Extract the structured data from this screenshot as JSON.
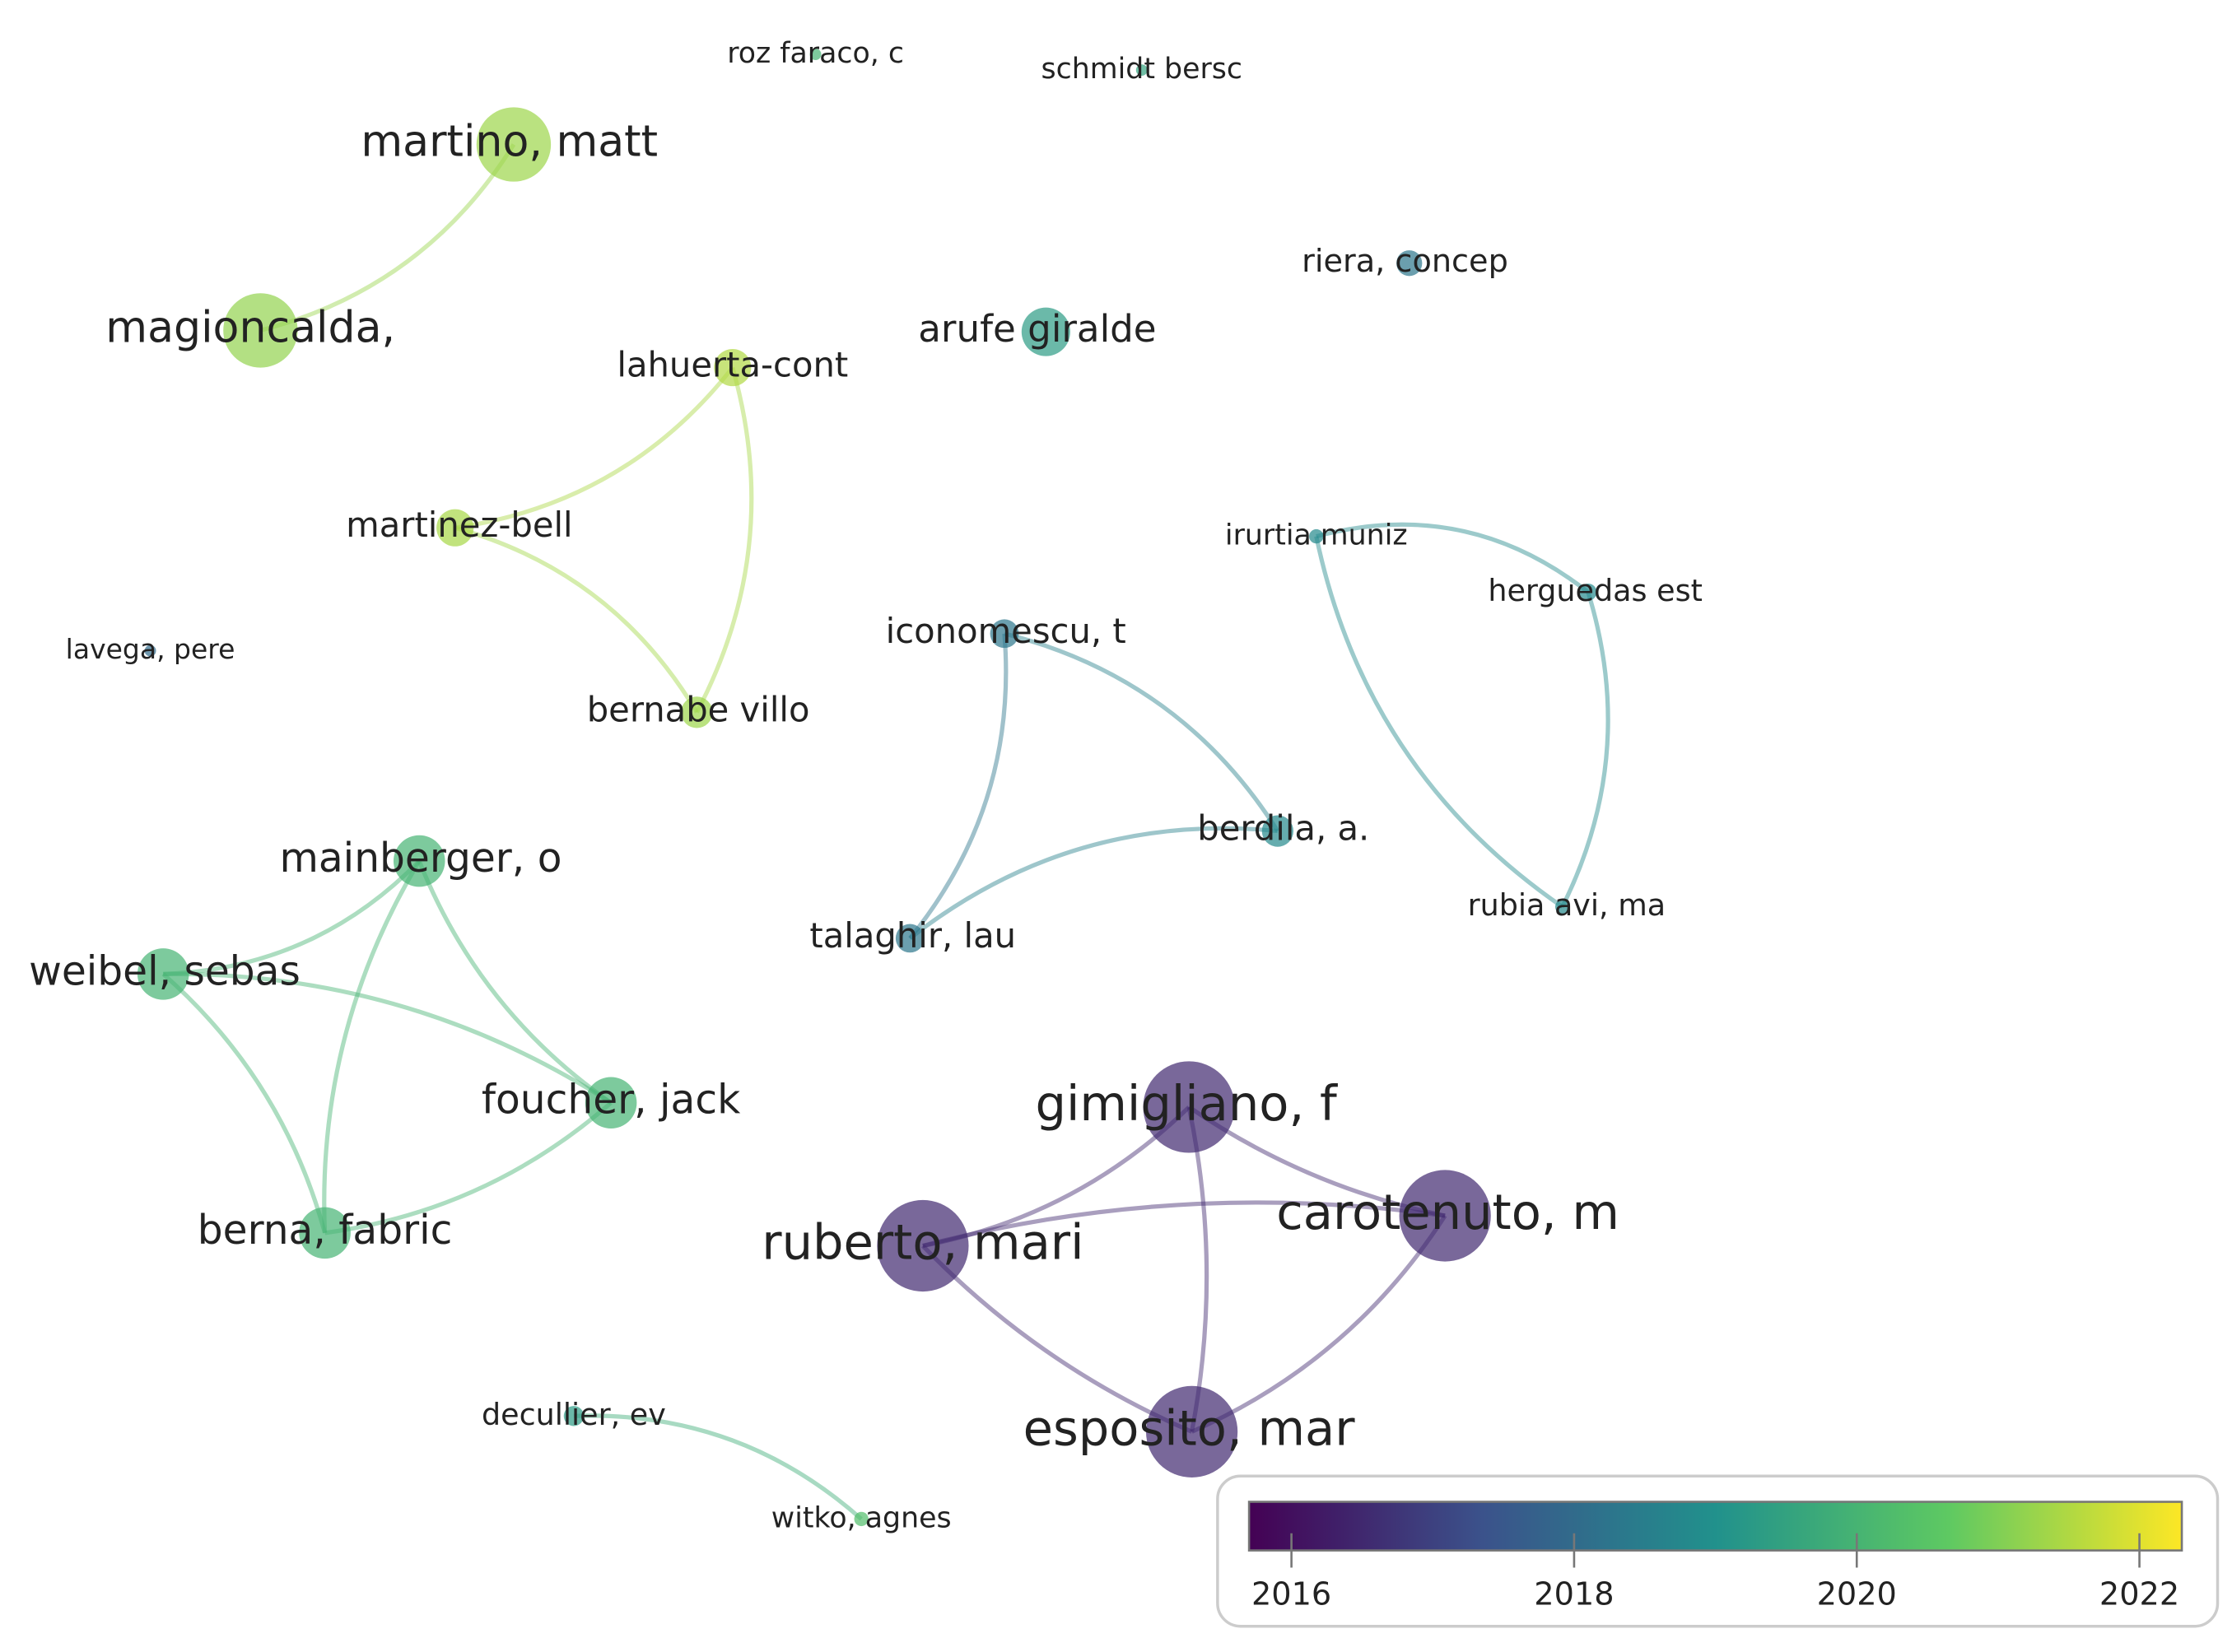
{
  "nodes": [
    {
      "label": "roz faraco, c",
      "year": 2020.0
    },
    {
      "label": "schmidt bersc",
      "year": 2019.5
    },
    {
      "label": "martino, matt",
      "year": 2021.3
    },
    {
      "label": "magioncalda,",
      "year": 2021.2
    },
    {
      "label": "riera, concep",
      "year": 2018.3
    },
    {
      "label": "arufe giralde",
      "year": 2019.3
    },
    {
      "label": "lahuerta-cont",
      "year": 2021.5
    },
    {
      "label": "martinez-bell",
      "year": 2021.4
    },
    {
      "label": "lavega, pere",
      "year": 2018.0
    },
    {
      "label": "bernabe villo",
      "year": 2021.3
    },
    {
      "label": "irurtia muniz",
      "year": 2018.8
    },
    {
      "label": "herguedas est",
      "year": 2018.8
    },
    {
      "label": "iconomescu, t",
      "year": 2018.3
    },
    {
      "label": "berdila, a.",
      "year": 2018.8
    },
    {
      "label": "rubia avi, ma",
      "year": 2018.8
    },
    {
      "label": "talaghir, lau",
      "year": 2018.3
    },
    {
      "label": "mainberger, o",
      "year": 2020.0
    },
    {
      "label": "weibel, sebas",
      "year": 2020.0
    },
    {
      "label": "foucher, jack",
      "year": 2020.0
    },
    {
      "label": "berna, fabric",
      "year": 2020.0
    },
    {
      "label": "gimigliano, f",
      "year": 2016.5
    },
    {
      "label": "ruberto, mari",
      "year": 2016.5
    },
    {
      "label": "carotenuto, m",
      "year": 2016.5
    },
    {
      "label": "esposito, mar",
      "year": 2016.5
    },
    {
      "label": "decullier, ev",
      "year": 2019.3
    },
    {
      "label": "witko, agnes",
      "year": 2020.3
    }
  ],
  "color_scale": {
    "range": [
      2015.7,
      2022.3
    ],
    "ticks": [
      2016,
      2018,
      2020,
      2022
    ]
  }
}
